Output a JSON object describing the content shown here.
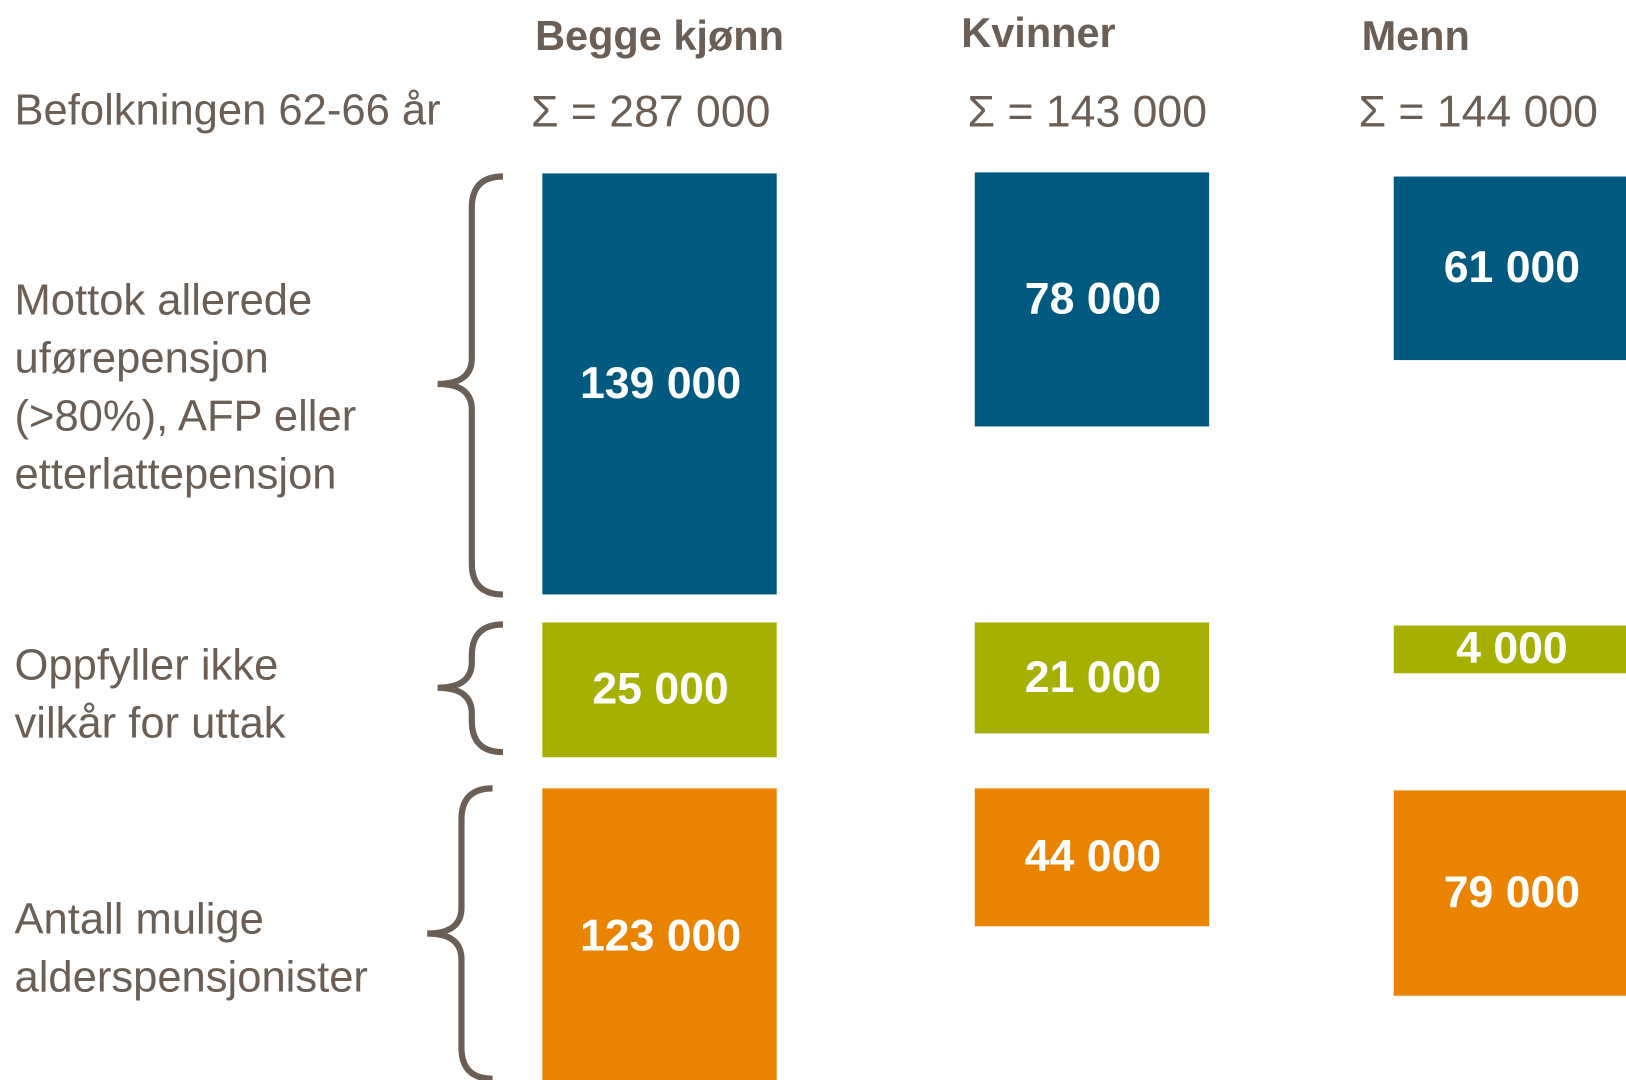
{
  "header": {
    "row_label": "Befolkningen 62-66 år",
    "columns": [
      {
        "title": "Begge kjønn",
        "total": "Σ = 287 000"
      },
      {
        "title": "Kvinner",
        "total": "Σ = 143 000"
      },
      {
        "title": "Menn",
        "total": "Σ = 144 000"
      }
    ]
  },
  "groups": [
    {
      "label": [
        "Mottok allerede",
        "uførepensjon",
        "(>80%), AFP eller",
        "etterlattepensjon"
      ],
      "cells": [
        "139 000",
        "78 000",
        "61 000"
      ]
    },
    {
      "label": [
        "Oppfyller ikke",
        "vilkår for uttak"
      ],
      "cells": [
        "25 000",
        "21 000",
        "4 000"
      ]
    },
    {
      "label": [
        "Antall mulige",
        "alderspensjonister"
      ],
      "cells": [
        "123 000",
        "44 000",
        "79 000"
      ]
    }
  ]
}
